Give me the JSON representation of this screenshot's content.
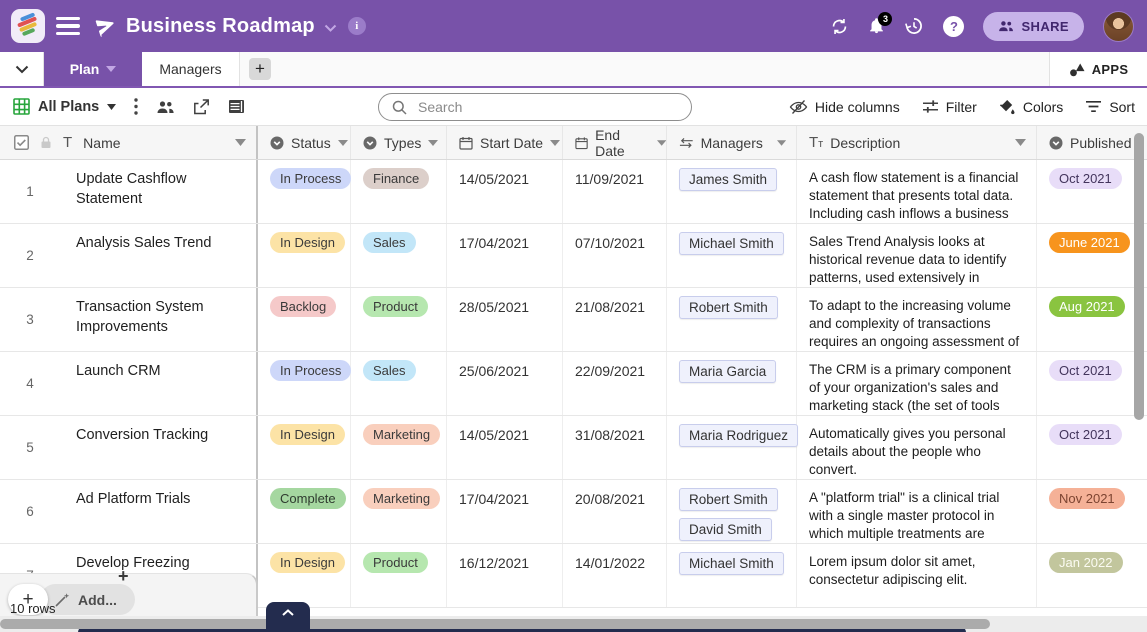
{
  "app": {
    "title": "Business Roadmap",
    "notifications_count": "3",
    "share_label": "SHARE",
    "info_glyph": "i",
    "help_glyph": "?"
  },
  "tabs": {
    "plan": "Plan",
    "managers": "Managers",
    "add_glyph": "+",
    "apps": "APPS"
  },
  "toolbar": {
    "view_name": "All Plans",
    "search_placeholder": "Search",
    "hide_columns": "Hide columns",
    "filter": "Filter",
    "colors": "Colors",
    "sort": "Sort"
  },
  "colors": {
    "topbar": "#7852a9",
    "accent_purple": "#7852a9",
    "grid_icon_green": "#27a53b",
    "navy_bar": "#232c4e"
  },
  "table": {
    "header": {
      "name": "Name",
      "status": "Status",
      "types": "Types",
      "start_date": "Start Date",
      "end_date": "End Date",
      "managers": "Managers",
      "description": "Description",
      "published": "Published",
      "text_icon": "T",
      "longtext_icon_small": "т"
    },
    "rows": [
      {
        "num": "1",
        "name": "Update Cashflow Statement",
        "status": {
          "label": "In Process",
          "bg": "#cdd7f9",
          "fg": "#3a3a3a"
        },
        "types": {
          "label": "Finance",
          "bg": "#dccfca",
          "fg": "#3a3a3a"
        },
        "start_date": "14/05/2021",
        "end_date": "11/09/2021",
        "managers": [
          "James Smith"
        ],
        "description": "A cash flow statement is a financial statement that presents total data. Including cash inflows a business gains",
        "published": {
          "label": "Oct 2021",
          "bg": "#e8ddf8",
          "fg": "#43355c"
        }
      },
      {
        "num": "2",
        "name": "Analysis Sales Trend",
        "status": {
          "label": "In Design",
          "bg": "#fce3a6",
          "fg": "#3a3a3a"
        },
        "types": {
          "label": "Sales",
          "bg": "#c2e6f8",
          "fg": "#3a3a3a"
        },
        "start_date": "17/04/2021",
        "end_date": "07/10/2021",
        "managers": [
          "Michael Smith"
        ],
        "description": "Sales Trend Analysis looks at historical revenue data to identify patterns, used extensively in budgeting and",
        "published": {
          "label": "June 2021",
          "bg": "#f7941d",
          "fg": "#ffffff"
        }
      },
      {
        "num": "3",
        "name": "Transaction System Improvements",
        "status": {
          "label": "Backlog",
          "bg": "#f5c9c9",
          "fg": "#3a3a3a"
        },
        "types": {
          "label": "Product",
          "bg": "#b6e7af",
          "fg": "#3a3a3a"
        },
        "start_date": "28/05/2021",
        "end_date": "21/08/2021",
        "managers": [
          "Robert Smith"
        ],
        "description": "To adapt to the increasing volume and complexity of transactions requires an ongoing assessment of the current",
        "published": {
          "label": "Aug 2021",
          "bg": "#8ac440",
          "fg": "#ffffff"
        }
      },
      {
        "num": "4",
        "name": "Launch CRM",
        "status": {
          "label": "In Process",
          "bg": "#cdd7f9",
          "fg": "#3a3a3a"
        },
        "types": {
          "label": "Sales",
          "bg": "#c2e6f8",
          "fg": "#3a3a3a"
        },
        "start_date": "25/06/2021",
        "end_date": "22/09/2021",
        "managers": [
          "Maria Garcia"
        ],
        "description": "The CRM is a primary component of your organization's sales and marketing stack (the set of tools you",
        "published": {
          "label": "Oct 2021",
          "bg": "#e8ddf8",
          "fg": "#43355c"
        }
      },
      {
        "num": "5",
        "name": "Conversion Tracking",
        "status": {
          "label": "In Design",
          "bg": "#fce3a6",
          "fg": "#3a3a3a"
        },
        "types": {
          "label": "Marketing",
          "bg": "#f9cfbd",
          "fg": "#3a3a3a"
        },
        "start_date": "14/05/2021",
        "end_date": "31/08/2021",
        "managers": [
          "Maria Rodriguez"
        ],
        "description": "Automatically gives you personal details about the people who convert.",
        "published": {
          "label": "Oct 2021",
          "bg": "#e8ddf8",
          "fg": "#43355c"
        }
      },
      {
        "num": "6",
        "name": "Ad Platform Trials",
        "status": {
          "label": "Complete",
          "bg": "#a5d7a0",
          "fg": "#2f3b2f"
        },
        "types": {
          "label": "Marketing",
          "bg": "#f9cfbd",
          "fg": "#3a3a3a"
        },
        "start_date": "17/04/2021",
        "end_date": "20/08/2021",
        "managers": [
          "Robert Smith",
          "David Smith"
        ],
        "description": "A \"platform trial\" is a clinical trial with a single master protocol in which multiple treatments are evaluated",
        "published": {
          "label": "Nov 2021",
          "bg": "#f5b197",
          "fg": "#7c4431"
        }
      },
      {
        "num": "7",
        "name": "Develop Freezing Features",
        "status": {
          "label": "In Design",
          "bg": "#fce3a6",
          "fg": "#3a3a3a"
        },
        "types": {
          "label": "Product",
          "bg": "#b6e7af",
          "fg": "#3a3a3a"
        },
        "start_date": "16/12/2021",
        "end_date": "14/01/2022",
        "managers": [
          "Michael Smith"
        ],
        "description": "Lorem ipsum dolor sit amet, consectetur adipiscing elit.",
        "published": {
          "label": "Jan 2022",
          "bg": "#c2c69d",
          "fg": "#fbfbf2"
        }
      }
    ]
  },
  "footer": {
    "add_label": "Add...",
    "plus_glyph": "+",
    "mini_plus_glyph": "+",
    "rows_count": "10 rows"
  }
}
